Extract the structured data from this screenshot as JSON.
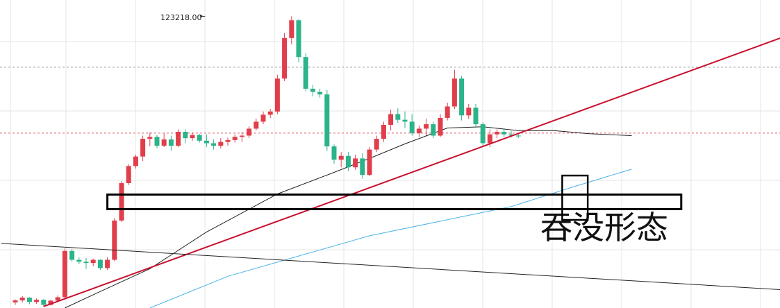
{
  "chart_data": {
    "type": "candlestick",
    "ylim": [
      100200,
      124500
    ],
    "x_index_range": [
      0,
      88
    ],
    "grid": true,
    "colors": {
      "up": "#e03e4b",
      "down": "#2bb38a",
      "ma_black": "#222222",
      "ma_blue": "#4ab3e8",
      "trendline": "#c8102e",
      "annotation": "#000000",
      "ref_dashed_gray": "#9a9a9a",
      "ref_dashed_red": "#e05a64",
      "grid": "#e6e6e6"
    },
    "peak_label": "123218.00",
    "annotation_text": "吞没形态",
    "candles": [
      [
        100640,
        100880,
        100450,
        100800
      ],
      [
        100800,
        101150,
        100650,
        101020
      ],
      [
        101020,
        101050,
        100500,
        100680
      ],
      [
        100680,
        100950,
        100520,
        100850
      ],
      [
        100850,
        100900,
        100300,
        100450
      ],
      [
        100450,
        100850,
        100400,
        100780
      ],
      [
        100780,
        101200,
        100700,
        101050
      ],
      [
        101050,
        104900,
        100950,
        104700
      ],
      [
        104700,
        104850,
        103850,
        104000
      ],
      [
        104000,
        104200,
        103650,
        103850
      ],
      [
        103850,
        104150,
        103300,
        103750
      ],
      [
        103750,
        104100,
        103500,
        104000
      ],
      [
        104000,
        104050,
        103200,
        103350
      ],
      [
        103350,
        104200,
        103200,
        104000
      ],
      [
        104000,
        107300,
        103900,
        107100
      ],
      [
        107100,
        110200,
        107000,
        110050
      ],
      [
        110050,
        111550,
        109900,
        111400
      ],
      [
        111400,
        112300,
        111200,
        112150
      ],
      [
        112150,
        113800,
        111800,
        113550
      ],
      [
        113550,
        114050,
        112950,
        113700
      ],
      [
        113700,
        113850,
        112800,
        113000
      ],
      [
        113000,
        113950,
        112900,
        113500
      ],
      [
        113500,
        113800,
        112600,
        113000
      ],
      [
        113000,
        114300,
        112900,
        114100
      ],
      [
        114100,
        114300,
        113200,
        113600
      ],
      [
        113600,
        114050,
        113400,
        113850
      ],
      [
        113850,
        113950,
        113250,
        113400
      ],
      [
        113400,
        113900,
        112900,
        113200
      ],
      [
        113200,
        113500,
        112700,
        113000
      ],
      [
        113000,
        113600,
        112800,
        113300
      ],
      [
        113300,
        113650,
        113000,
        113450
      ],
      [
        113450,
        113900,
        113250,
        113700
      ],
      [
        113700,
        114100,
        113300,
        113800
      ],
      [
        113800,
        114550,
        113600,
        114350
      ],
      [
        114350,
        115150,
        114200,
        114900
      ],
      [
        114900,
        115700,
        114700,
        115450
      ],
      [
        115450,
        115900,
        115200,
        115700
      ],
      [
        115700,
        118600,
        115500,
        118300
      ],
      [
        118300,
        121900,
        118100,
        121500
      ],
      [
        121500,
        123218,
        121000,
        122900
      ],
      [
        122900,
        123000,
        119600,
        120000
      ],
      [
        120000,
        120300,
        117300,
        117500
      ],
      [
        117500,
        117800,
        116900,
        117250
      ],
      [
        117250,
        117500,
        116800,
        117050
      ],
      [
        117050,
        117400,
        112600,
        112950
      ],
      [
        112950,
        113100,
        111600,
        111900
      ],
      [
        111900,
        112500,
        111300,
        112200
      ],
      [
        112200,
        112500,
        111000,
        111300
      ],
      [
        111300,
        112300,
        111100,
        112000
      ],
      [
        112000,
        112400,
        110400,
        110700
      ],
      [
        110700,
        112900,
        110600,
        112700
      ],
      [
        112700,
        113800,
        112500,
        113550
      ],
      [
        113550,
        114900,
        113300,
        114650
      ],
      [
        114650,
        115850,
        114200,
        115500
      ],
      [
        115500,
        115950,
        114800,
        115050
      ],
      [
        115050,
        115700,
        114400,
        114900
      ],
      [
        114900,
        115500,
        113800,
        114000
      ],
      [
        114000,
        114600,
        113700,
        114350
      ],
      [
        114350,
        115150,
        113800,
        114700
      ],
      [
        114700,
        114900,
        113600,
        113800
      ],
      [
        113800,
        115500,
        113700,
        115200
      ],
      [
        115200,
        116400,
        115000,
        116100
      ],
      [
        116100,
        119000,
        115900,
        118300
      ],
      [
        118300,
        118500,
        115000,
        115400
      ],
      [
        115400,
        116300,
        115100,
        116000
      ],
      [
        116000,
        116300,
        114500,
        114700
      ],
      [
        114700,
        114850,
        113000,
        113200
      ],
      [
        113200,
        114300,
        112900,
        113900
      ],
      [
        113900,
        114300,
        113600,
        114100
      ],
      [
        114100,
        114400,
        113700,
        113900
      ],
      [
        113900,
        114150,
        113650,
        113800
      ],
      [
        113800,
        114000,
        113600,
        113750
      ]
    ]
  }
}
